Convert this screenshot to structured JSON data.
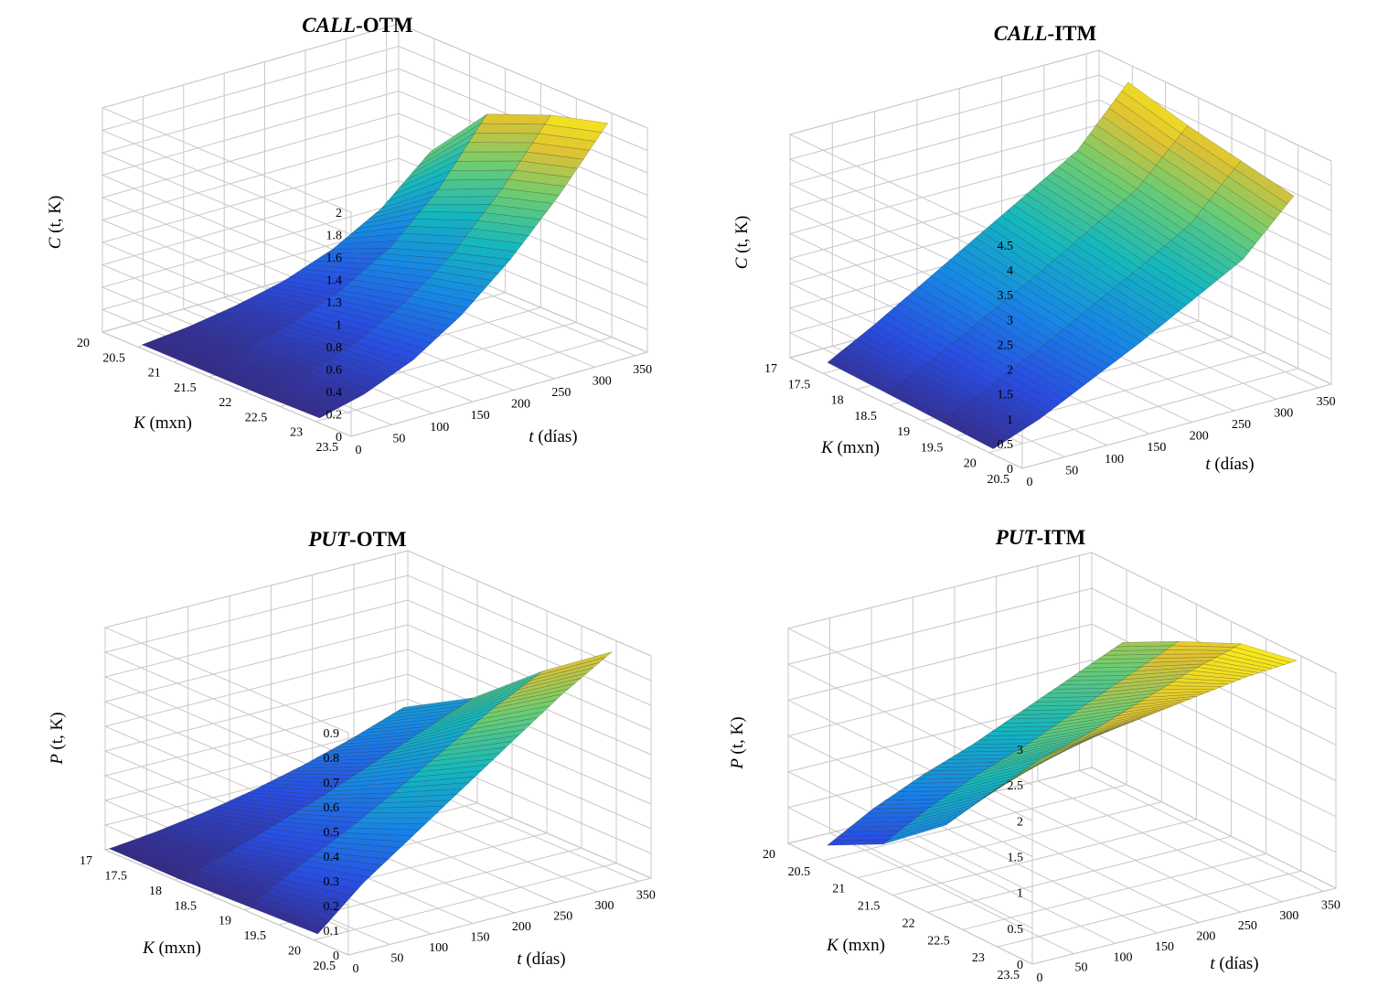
{
  "chart_data": [
    {
      "type": "surface3d",
      "title_italic": "CALL",
      "title_rest": "-OTM",
      "zlabel_var": "C",
      "zlabel_args": "(t, K)",
      "xlabel_var": "t",
      "xlabel_unit": "(días)",
      "ylabel_var": "K",
      "ylabel_unit": "(mxn)",
      "xlim": [
        0,
        365
      ],
      "ylim": [
        20,
        23.5
      ],
      "zlim": [
        0,
        2
      ],
      "xticks": [
        "0",
        "50",
        "100",
        "150",
        "200",
        "250",
        "300",
        "350"
      ],
      "yticks": [
        "20",
        "20.5",
        "21",
        "21.5",
        "22",
        "22.5",
        "23",
        "23.5"
      ],
      "zticks": [
        "0",
        "0.2",
        "0.4",
        "0.6",
        "0.8",
        "1",
        "1.3",
        "1.4",
        "1.6",
        "1.8",
        "2"
      ],
      "zmax_color": 1.9,
      "surface": {
        "t": [
          5,
          60,
          120,
          180,
          240,
          300,
          360
        ],
        "K": [
          20.5,
          21.3,
          22.2,
          23.0
        ],
        "z": [
          [
            0.01,
            0.05,
            0.12,
            0.22,
            0.38,
            0.62,
            1.0
          ],
          [
            0.01,
            0.07,
            0.18,
            0.35,
            0.6,
            1.0,
            1.55
          ],
          [
            0.01,
            0.1,
            0.25,
            0.48,
            0.8,
            1.25,
            1.78
          ],
          [
            0.02,
            0.12,
            0.3,
            0.58,
            0.95,
            1.4,
            1.92
          ]
        ]
      }
    },
    {
      "type": "surface3d",
      "title_italic": "CALL",
      "title_rest": "-ITM",
      "zlabel_var": "C",
      "zlabel_args": "(t, K)",
      "xlabel_var": "t",
      "xlabel_unit": "(días)",
      "ylabel_var": "K",
      "ylabel_unit": "(mxn)",
      "xlim": [
        0,
        365
      ],
      "ylim": [
        17,
        20.5
      ],
      "zlim": [
        0,
        4.5
      ],
      "xticks": [
        "0",
        "50",
        "100",
        "150",
        "200",
        "250",
        "300",
        "350"
      ],
      "yticks": [
        "17",
        "17.5",
        "18",
        "18.5",
        "19",
        "19.5",
        "20",
        "20.5"
      ],
      "zticks": [
        "0",
        "0.5",
        "1",
        "1.5",
        "2",
        "2.5",
        "3",
        "3.5",
        "4",
        "4.5"
      ],
      "zmax_color": 4.3,
      "surface": {
        "t": [
          5,
          60,
          120,
          180,
          240,
          300,
          360
        ],
        "K": [
          17.5,
          18.4,
          19.2,
          20.0
        ],
        "z": [
          [
            0.2,
            0.7,
            1.3,
            1.9,
            2.5,
            3.1,
            4.2
          ],
          [
            0.15,
            0.6,
            1.15,
            1.7,
            2.3,
            2.9,
            3.9
          ],
          [
            0.1,
            0.5,
            1.0,
            1.55,
            2.1,
            2.7,
            3.7
          ],
          [
            0.05,
            0.4,
            0.9,
            1.4,
            1.95,
            2.5,
            3.5
          ]
        ]
      }
    },
    {
      "type": "surface3d",
      "title_italic": "PUT",
      "title_rest": "-OTM",
      "zlabel_var": "P",
      "zlabel_args": "(t, K)",
      "xlabel_var": "t",
      "xlabel_unit": "(días)",
      "ylabel_var": "K",
      "ylabel_unit": "(mxn)",
      "xlim": [
        0,
        365
      ],
      "ylim": [
        17,
        20.5
      ],
      "zlim": [
        0,
        0.9
      ],
      "xticks": [
        "0",
        "50",
        "100",
        "150",
        "200",
        "250",
        "300",
        "350"
      ],
      "yticks": [
        "17",
        "17.5",
        "18",
        "18.5",
        "19",
        "19.5",
        "20",
        "20.5"
      ],
      "zticks": [
        "0",
        "0.1",
        "0.2",
        "0.3",
        "0.4",
        "0.5",
        "0.6",
        "0.7",
        "0.8",
        "0.9"
      ],
      "zmax_color": 0.9,
      "surface": {
        "t": [
          5,
          60,
          120,
          180,
          240,
          300,
          360
        ],
        "K": [
          17.0,
          18.0,
          19.0,
          20.0
        ],
        "z": [
          [
            0.0,
            0.02,
            0.05,
            0.09,
            0.14,
            0.2,
            0.27
          ],
          [
            0.0,
            0.05,
            0.12,
            0.19,
            0.27,
            0.35,
            0.43
          ],
          [
            0.01,
            0.11,
            0.21,
            0.32,
            0.44,
            0.56,
            0.66
          ],
          [
            0.02,
            0.18,
            0.32,
            0.46,
            0.6,
            0.74,
            0.86
          ]
        ]
      }
    },
    {
      "type": "surface3d",
      "title_italic": "PUT",
      "title_rest": "-ITM",
      "zlabel_var": "P",
      "zlabel_args": "(t, K)",
      "xlabel_var": "t",
      "xlabel_unit": "(días)",
      "ylabel_var": "K",
      "ylabel_unit": "(mxn)",
      "xlim": [
        0,
        365
      ],
      "ylim": [
        20,
        23.5
      ],
      "zlim": [
        0,
        3
      ],
      "xticks": [
        "0",
        "50",
        "100",
        "150",
        "200",
        "250",
        "300",
        "350"
      ],
      "yticks": [
        "20",
        "20.5",
        "21",
        "21.5",
        "22",
        "22.5",
        "23",
        "23.5"
      ],
      "zticks": [
        "0",
        "0.5",
        "1",
        "1.5",
        "2",
        "2.5",
        "3"
      ],
      "zmax_color": 2.9,
      "surface": {
        "t": [
          5,
          60,
          120,
          180,
          240,
          300,
          360
        ],
        "K": [
          20.5,
          21.3,
          22.2,
          23.0
        ],
        "z": [
          [
            0.2,
            0.55,
            0.85,
            1.1,
            1.4,
            1.7,
            2.0
          ],
          [
            0.6,
            0.95,
            1.25,
            1.5,
            1.8,
            2.1,
            2.4
          ],
          [
            1.3,
            1.6,
            1.9,
            2.1,
            2.35,
            2.6,
            2.8
          ],
          [
            2.3,
            2.45,
            2.6,
            2.7,
            2.8,
            2.9,
            2.95
          ]
        ]
      }
    }
  ]
}
